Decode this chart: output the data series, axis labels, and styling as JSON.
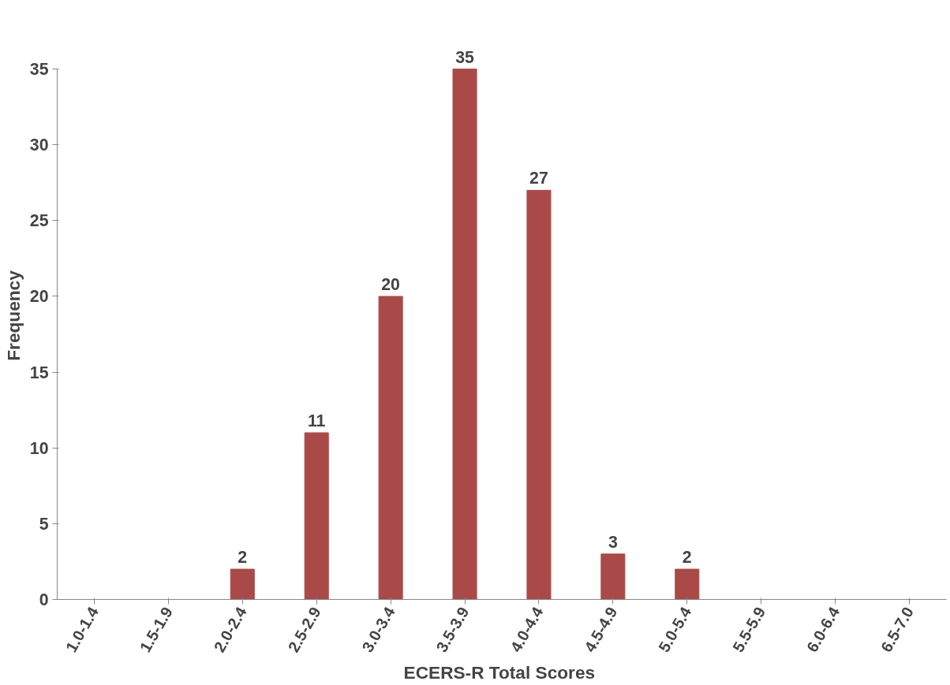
{
  "chart_data": {
    "type": "bar",
    "xlabel": "ECERS-R  Total Scores",
    "ylabel": "Frequency",
    "categories": [
      "1.0-1.4",
      "1.5-1.9",
      "2.0-2.4",
      "2.5-2.9",
      "3.0-3.4",
      "3.5-3.9",
      "4.0-4.4",
      "4.5-4.9",
      "5.0-5.4",
      "5.5-5.9",
      "6.0-6.4",
      "6.5-7.0"
    ],
    "values": [
      0,
      0,
      2,
      11,
      20,
      35,
      27,
      3,
      2,
      0,
      0,
      0
    ],
    "value_labels": [
      null,
      null,
      "2",
      "11",
      "20",
      "35",
      "27",
      "3",
      "2",
      null,
      null,
      null
    ],
    "color": "#aa4a48",
    "ylim": [
      0,
      35
    ],
    "yticks": [
      0,
      5,
      10,
      15,
      20,
      25,
      30,
      35
    ],
    "grid": false
  }
}
